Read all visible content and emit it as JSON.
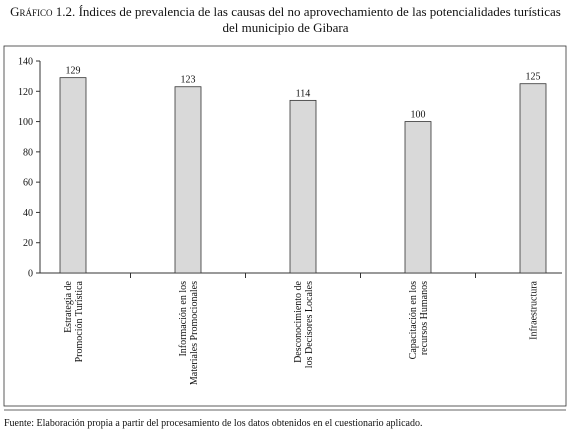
{
  "chart_data": {
    "type": "bar",
    "title_label": "Gráfico 1.2.",
    "title": "Índices de prevalencia de las causas del no aprovechamiento de las potencialidades turísticas del municipio de Gibara",
    "categories": [
      "Estrategia de\nPromoción Turística",
      "Información en los\nMateriales Promocionales",
      "Desconocimiento de\nlos Decisores Locales",
      "Capacitación en los\nrecursos Humanos",
      "Infraestructura"
    ],
    "values": [
      129,
      123,
      114,
      100,
      125
    ],
    "color": "#d9d9d9",
    "ylim": [
      0,
      140
    ],
    "yticks": [
      0,
      20,
      40,
      60,
      80,
      100,
      120,
      140
    ],
    "source": "Fuente: Elaboración propia a partir del procesamiento de los datos obtenidos en el cuestionario aplicado."
  }
}
